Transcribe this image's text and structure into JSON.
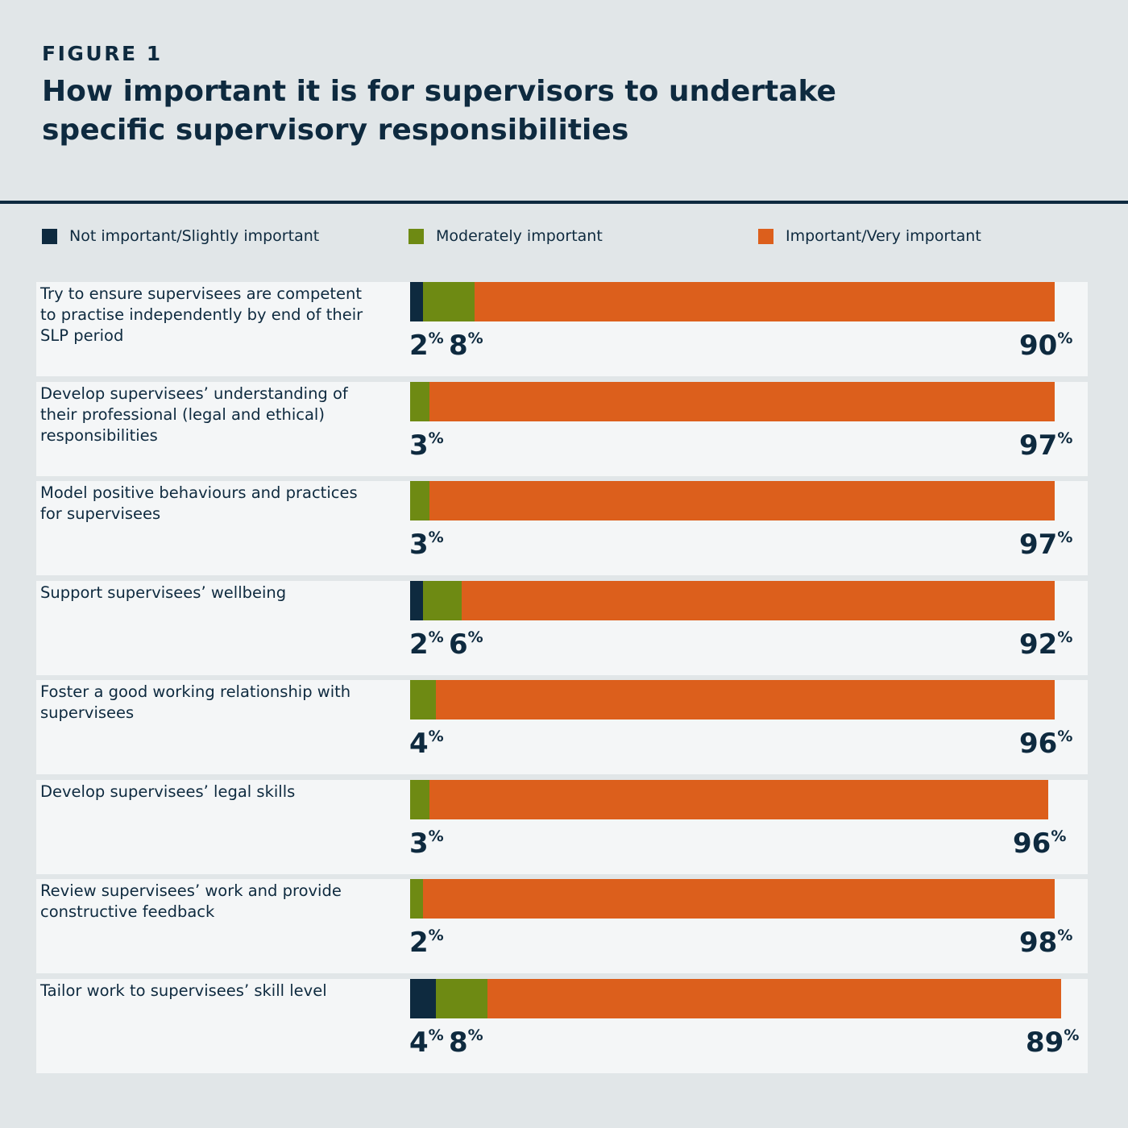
{
  "header": {
    "figure_label": "FIGURE 1",
    "title": "How important it is for supervisors to undertake specific supervisory responsibilities"
  },
  "colors": {
    "background": "#e1e6e8",
    "panel": "#f4f6f7",
    "text": "#0e2a3f",
    "not_important": "#0e2a3f",
    "moderately_important": "#6e8a13",
    "important": "#dc5f1c"
  },
  "chart_data": {
    "type": "bar",
    "orientation": "horizontal",
    "stacked": true,
    "value_suffix": "%",
    "legend_position": "top",
    "series": [
      {
        "name": "Not important/Slightly important",
        "color_key": "not_important",
        "values": [
          2,
          null,
          null,
          2,
          null,
          null,
          null,
          4
        ]
      },
      {
        "name": "Moderately important",
        "color_key": "moderately_important",
        "values": [
          8,
          3,
          3,
          6,
          4,
          3,
          2,
          8
        ]
      },
      {
        "name": "Important/Very important",
        "color_key": "important",
        "values": [
          90,
          97,
          97,
          92,
          96,
          96,
          98,
          89
        ]
      }
    ],
    "categories": [
      "Try to ensure supervisees are competent to practise independently by end of their SLP period",
      "Develop supervisees’ understanding of their professional (legal and ethical) responsibilities",
      "Model positive behaviours and practices for supervisees",
      "Support supervisees’ wellbeing",
      "Foster a good working relationship with supervisees",
      "Develop supervisees’ legal skills",
      "Review supervisees’ work and provide constructive feedback",
      "Tailor work to supervisees’ skill level"
    ]
  }
}
